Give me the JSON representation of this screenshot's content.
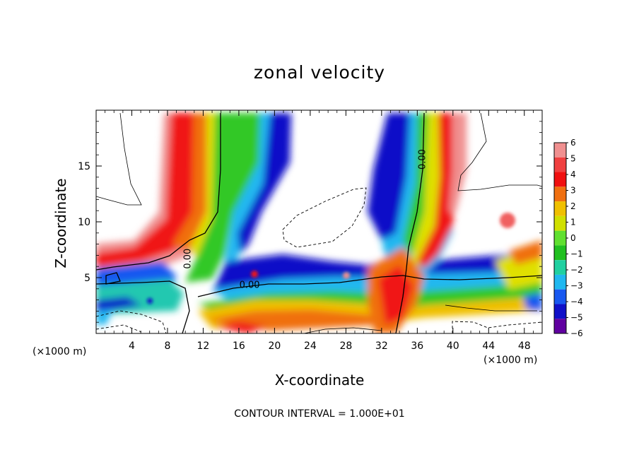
{
  "chart_data": {
    "type": "heatmap",
    "title": "zonal velocity",
    "xlabel": "X-coordinate",
    "ylabel": "Z-coordinate",
    "x_unit_label": "(×1000 m)",
    "xlim": [
      0,
      50
    ],
    "ylim": [
      0,
      20
    ],
    "x_ticks": [
      "4",
      "8",
      "12",
      "16",
      "20",
      "24",
      "28",
      "32",
      "36",
      "40",
      "44",
      "48"
    ],
    "x_tick_values": [
      4,
      8,
      12,
      16,
      20,
      24,
      28,
      32,
      36,
      40,
      44,
      48
    ],
    "y_ticks": [
      "5",
      "10",
      "15"
    ],
    "y_tick_values": [
      5,
      10,
      15
    ],
    "colorbar": {
      "labels": [
        "6",
        "5",
        "4",
        "3",
        "2",
        "1",
        "0",
        "−1",
        "−2",
        "−3",
        "−4",
        "−5",
        "−6"
      ],
      "levels": [
        6,
        5,
        4,
        3,
        2,
        1,
        0,
        -1,
        -2,
        -3,
        -4,
        -5,
        -6
      ],
      "colors": [
        "#f09090",
        "#f04040",
        "#f01010",
        "#f07010",
        "#f0c000",
        "#d0e000",
        "#60e030",
        "#20c020",
        "#20d0a0",
        "#20b8f0",
        "#1858f0",
        "#1010c8",
        "#6000a0"
      ]
    },
    "contour_labels": [
      {
        "text": "0.00",
        "x": 10.3,
        "z": 6.7,
        "rotate": -90
      },
      {
        "text": "0.00",
        "x": 17.2,
        "z": 4.3,
        "rotate": 0
      },
      {
        "text": "0.00",
        "x": 36.6,
        "z": 15.6,
        "rotate": -90
      }
    ],
    "contour_interval_text": "CONTOUR INTERVAL = 1.000E+01"
  }
}
